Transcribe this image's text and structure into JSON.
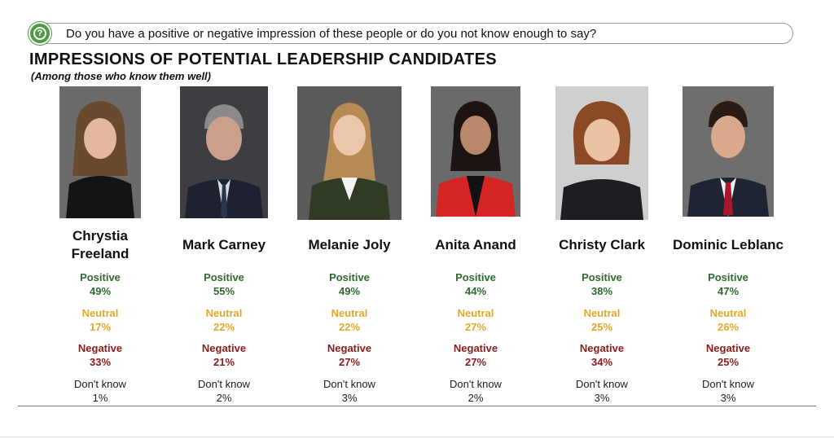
{
  "question": {
    "icon": "question-icon",
    "text": "Do you have a positive or negative impression of these people or do you not know enough to say?"
  },
  "title": "IMPRESSIONS OF POTENTIAL LEADERSHIP CANDIDATES",
  "subtitle": "(Among those who know them well)",
  "colors": {
    "positive": "#2f6b2f",
    "neutral": "#e0a92a",
    "negative": "#8b1d1d",
    "dont_know": "#222222",
    "accent": "#4e9a45"
  },
  "chart_data": {
    "type": "table",
    "categories": [
      "Chrystia Freeland",
      "Mark Carney",
      "Melanie Joly",
      "Anita Anand",
      "Christy Clark",
      "Dominic Leblanc"
    ],
    "series": [
      {
        "name": "Positive",
        "values": [
          49,
          55,
          49,
          44,
          38,
          47
        ]
      },
      {
        "name": "Neutral",
        "values": [
          17,
          22,
          22,
          27,
          25,
          26
        ]
      },
      {
        "name": "Negative",
        "values": [
          33,
          21,
          27,
          27,
          34,
          25
        ]
      },
      {
        "name": "Don't know",
        "values": [
          1,
          2,
          3,
          2,
          3,
          3
        ]
      }
    ]
  },
  "candidates": [
    {
      "name": "Chrystia Freeland",
      "positive_label": "Positive",
      "positive": "49%",
      "neutral_label": "Neutral",
      "neutral": "17%",
      "negative_label": "Negative",
      "negative": "33%",
      "dontknow_label": "Don't know",
      "dontknow": "1%"
    },
    {
      "name": "Mark Carney",
      "positive_label": "Positive",
      "positive": "55%",
      "neutral_label": "Neutral",
      "neutral": "22%",
      "negative_label": "Negative",
      "negative": "21%",
      "dontknow_label": "Don't know",
      "dontknow": "2%"
    },
    {
      "name": "Melanie Joly",
      "positive_label": "Positive",
      "positive": "49%",
      "neutral_label": "Neutral",
      "neutral": "22%",
      "negative_label": "Negative",
      "negative": "27%",
      "dontknow_label": "Don't know",
      "dontknow": "3%"
    },
    {
      "name": "Anita Anand",
      "positive_label": "Positive",
      "positive": "44%",
      "neutral_label": "Neutral",
      "neutral": "27%",
      "negative_label": "Negative",
      "negative": "27%",
      "dontknow_label": "Don't know",
      "dontknow": "2%"
    },
    {
      "name": "Christy Clark",
      "positive_label": "Positive",
      "positive": "38%",
      "neutral_label": "Neutral",
      "neutral": "25%",
      "negative_label": "Negative",
      "negative": "34%",
      "dontknow_label": "Don't know",
      "dontknow": "3%"
    },
    {
      "name": "Dominic Leblanc",
      "positive_label": "Positive",
      "positive": "47%",
      "neutral_label": "Neutral",
      "neutral": "26%",
      "negative_label": "Negative",
      "negative": "25%",
      "dontknow_label": "Don't know",
      "dontknow": "3%"
    }
  ]
}
